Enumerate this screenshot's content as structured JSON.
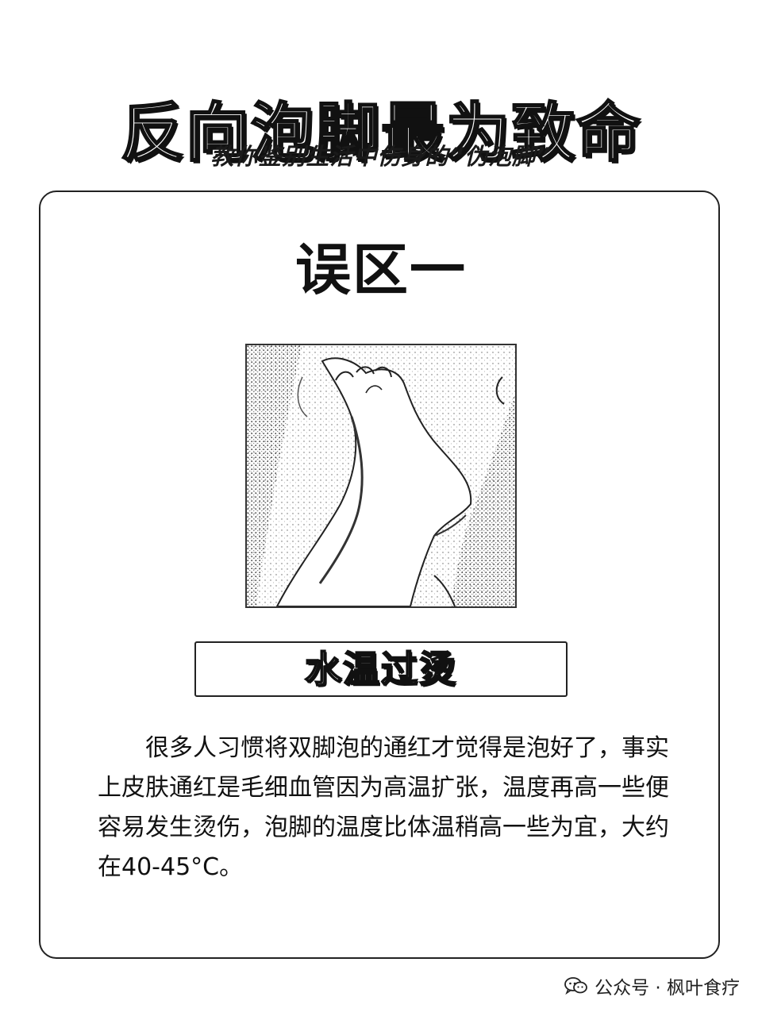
{
  "header": {
    "title": "反向泡脚最为致命",
    "subtitle": "教你鉴别生活中伤身的“伪泡脚”"
  },
  "card": {
    "title": "误区一",
    "illustration": {
      "icon": "foot-soaking-illustration"
    },
    "label": "水温过烫",
    "body": "很多人习惯将双脚泡的通红才觉得是泡好了，事实上皮肤通红是毛细血管因为高温扩张，温度再高一些便容易发生烫伤，泡脚的温度比体温稍高一些为宜，大约在40-45°C。"
  },
  "footer": {
    "icon": "wechat-icon",
    "text": "公众号 · 枫叶食疗"
  },
  "colors": {
    "ink": "#111111",
    "background": "#ffffff"
  }
}
